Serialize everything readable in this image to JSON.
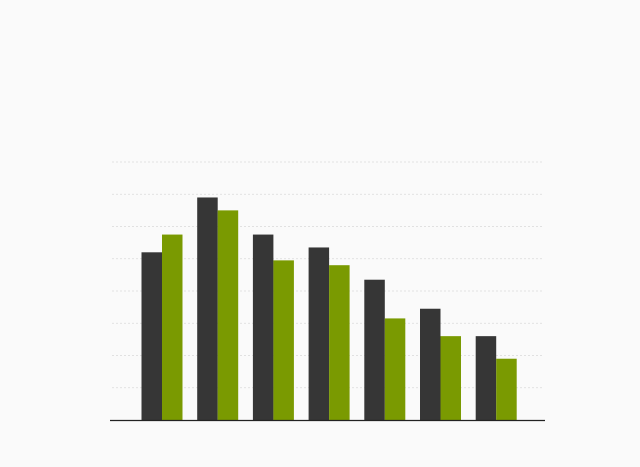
{
  "chart_data": {
    "type": "bar",
    "categories": [
      "",
      "",
      "",
      "",
      "",
      "",
      ""
    ],
    "series": [
      {
        "values": [
          52,
          69,
          57.5,
          53.5,
          43.5,
          34.5,
          26
        ],
        "color": "#363636"
      },
      {
        "values": [
          57.5,
          65,
          49.5,
          48,
          31.5,
          26,
          19
        ],
        "color": "#7a9a01"
      }
    ],
    "ylim": [
      0,
      80
    ],
    "grid": true,
    "legend": "none",
    "xlabel": "",
    "ylabel": ""
  },
  "colors": {
    "background": "#fafafa",
    "grid": "#d9d9d9",
    "axis": "#222222"
  }
}
